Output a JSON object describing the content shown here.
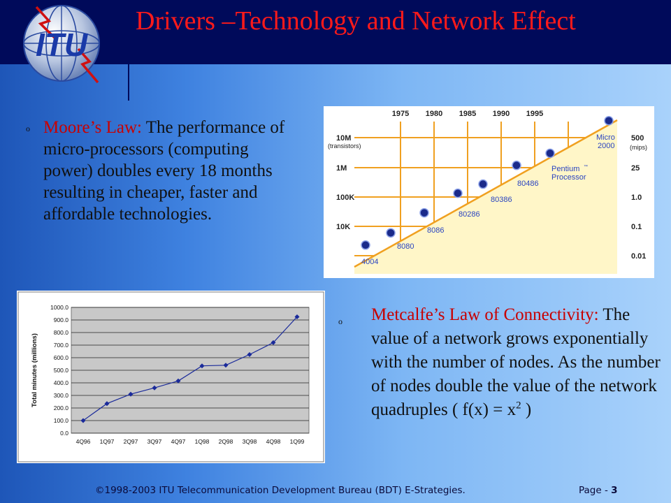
{
  "slide": {
    "title": "Drivers –Technology and Network Effect",
    "logo_text": "ITU",
    "bullets": {
      "moore": {
        "marker": "o",
        "lead": "Moore’s Law:",
        "text": " The performance of micro-processors (computing power) doubles every 18 months resulting in cheaper, faster and affordable technologies."
      },
      "metcalfe": {
        "marker": "o",
        "lead": "Metcalfe’s Law of Connectivity:",
        "text": " The value of a network grows exponentially with the number of nodes.  As the number of nodes double the value of the network quadruples ( f(x) = x",
        "superscript": "2",
        "tail": " )"
      }
    },
    "footer": "©1998-2003 ITU Telecommunication Development Bureau (BDT)  E-Strategies.",
    "page_label": "Page - ",
    "page_number": "3"
  },
  "colors": {
    "header": "#000a5a",
    "title": "#ff1a1a",
    "lead_text": "#c80000",
    "series": "#1a2a9a"
  },
  "chart_data": [
    {
      "type": "scatter",
      "x_ticks": [
        "1975",
        "1980",
        "1985",
        "1990",
        "1995"
      ],
      "y_left_ticks": [
        "10M",
        "1M",
        "100K",
        "10K"
      ],
      "y_left_sublabel": "(transistors)",
      "y_right_ticks": [
        "500",
        "25",
        "1.0",
        "0.1",
        "0.01"
      ],
      "y_right_sublabel": "(mips)",
      "points": [
        {
          "name": "4004",
          "x": 1971,
          "transistors": 2300
        },
        {
          "name": "8080",
          "x": 1974,
          "transistors": 6000
        },
        {
          "name": "8086",
          "x": 1978,
          "transistors": 29000
        },
        {
          "name": "80286",
          "x": 1982,
          "transistors": 134000
        },
        {
          "name": "80386",
          "x": 1985,
          "transistors": 275000
        },
        {
          "name": "80486",
          "x": 1989,
          "transistors": 1200000
        },
        {
          "name": "Pentium Processor",
          "x": 1993,
          "transistors": 3100000
        },
        {
          "name": "Micro 2000",
          "x": 2000,
          "transistors": 40000000
        }
      ],
      "labels": {
        "4004": "4004",
        "8080": "8080",
        "8086": "8086",
        "80286": "80286",
        "80386": "80386",
        "80486": "80486",
        "pentium": "Pentium",
        "pentium_tm": "™",
        "processor": "Processor",
        "micro": "Micro",
        "micro_year": "2000"
      }
    },
    {
      "type": "line",
      "categories": [
        "4Q96",
        "1Q97",
        "2Q97",
        "3Q97",
        "4Q97",
        "1Q98",
        "2Q98",
        "3Q98",
        "4Q98",
        "1Q99"
      ],
      "values": [
        100,
        235,
        310,
        360,
        415,
        535,
        540,
        625,
        720,
        925
      ],
      "ylabel": "Total minutes (millions)",
      "ylim": [
        0,
        1000
      ],
      "y_ticks": [
        "0.0",
        "100.0",
        "200.0",
        "300.0",
        "400.0",
        "500.0",
        "600.0",
        "700.0",
        "800.0",
        "900.0",
        "1000.0"
      ],
      "grid": true
    }
  ]
}
